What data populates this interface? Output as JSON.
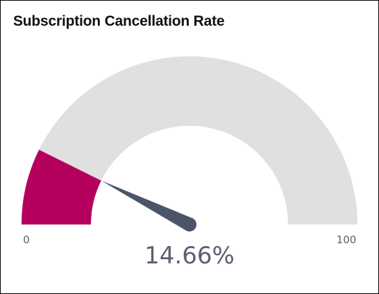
{
  "chart_data": {
    "type": "gauge",
    "title": "Subscription Cancellation Rate",
    "value": 14.66,
    "value_label": "14.66%",
    "min": 0,
    "max": 100,
    "min_label": "0",
    "max_label": "100",
    "colors": {
      "filled": "#b5005e",
      "track": "#e0e0e0",
      "needle": "#4a5568",
      "labels": "#5a6170"
    }
  }
}
